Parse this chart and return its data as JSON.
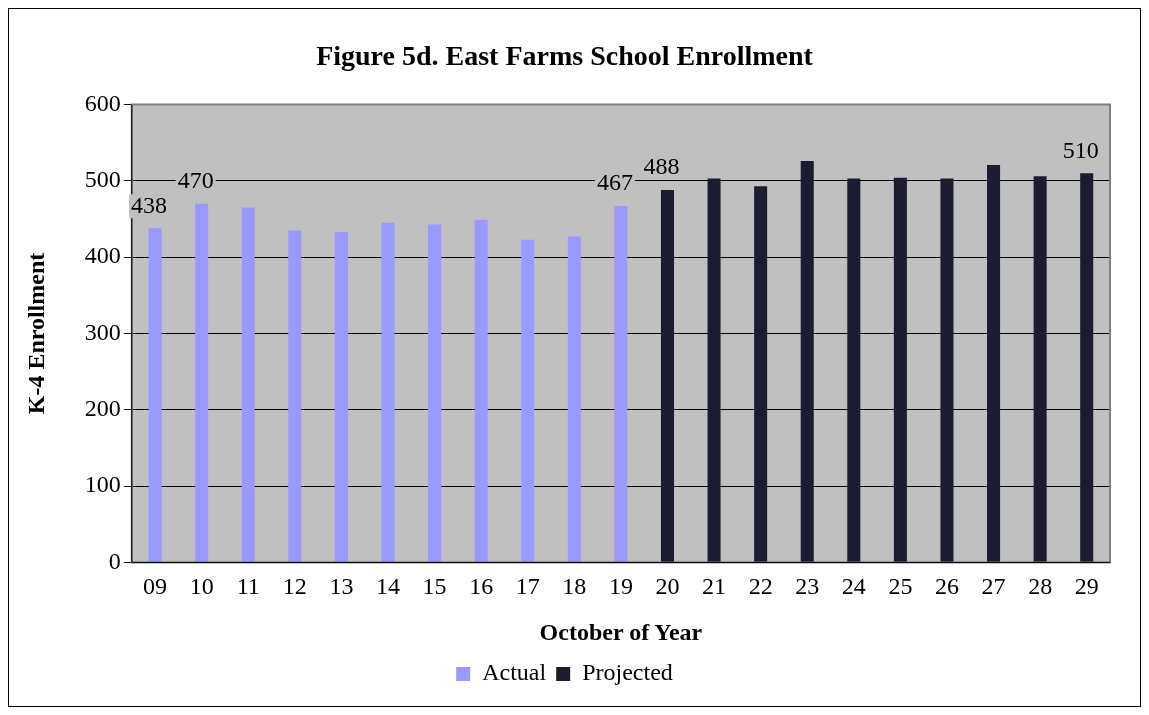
{
  "chart_data": {
    "type": "bar",
    "title": "Figure 5d. East Farms School Enrollment",
    "xlabel": "October of Year",
    "ylabel": "K-4 Enrollment",
    "categories": [
      "09",
      "10",
      "11",
      "12",
      "13",
      "14",
      "15",
      "16",
      "17",
      "18",
      "19",
      "20",
      "21",
      "22",
      "23",
      "24",
      "25",
      "26",
      "27",
      "28",
      "29"
    ],
    "series": [
      {
        "name": "Actual",
        "color": "#9999ff",
        "values": [
          438,
          470,
          465,
          435,
          433,
          445,
          443,
          449,
          423,
          427,
          467,
          null,
          null,
          null,
          null,
          null,
          null,
          null,
          null,
          null,
          null
        ],
        "value_labels": [
          "438",
          "470",
          null,
          null,
          null,
          null,
          null,
          null,
          null,
          null,
          "467",
          null,
          null,
          null,
          null,
          null,
          null,
          null,
          null,
          null,
          null
        ]
      },
      {
        "name": "Projected",
        "color": "#1c1c30",
        "values": [
          null,
          null,
          null,
          null,
          null,
          null,
          null,
          null,
          null,
          null,
          null,
          488,
          503,
          493,
          526,
          503,
          504,
          503,
          521,
          506,
          510
        ],
        "value_labels": [
          null,
          null,
          null,
          null,
          null,
          null,
          null,
          null,
          null,
          null,
          null,
          "488",
          null,
          null,
          null,
          null,
          null,
          null,
          null,
          null,
          "510"
        ]
      }
    ],
    "ylim": [
      0,
      600
    ],
    "yticks": [
      0,
      100,
      200,
      300,
      400,
      500,
      600
    ],
    "grid": "y",
    "legend": "bottom"
  }
}
